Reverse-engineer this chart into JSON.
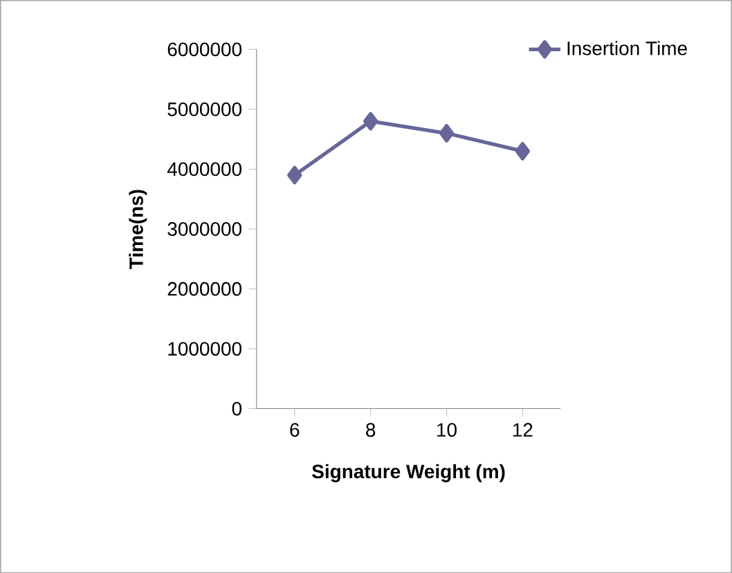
{
  "chart_data": {
    "type": "line",
    "xlabel": "Signature  Weight (m)",
    "ylabel": "Time(ns)",
    "categories": [
      "6",
      "8",
      "10",
      "12"
    ],
    "series": [
      {
        "name": "Insertion Time",
        "color": "#666699",
        "values": [
          3900000,
          4800000,
          4600000,
          4300000
        ]
      }
    ],
    "ylim": [
      0,
      6000000
    ],
    "yticks": [
      0,
      1000000,
      2000000,
      3000000,
      4000000,
      5000000,
      6000000
    ],
    "legend": "top right",
    "marker": "diamond",
    "line_style": "solid"
  }
}
